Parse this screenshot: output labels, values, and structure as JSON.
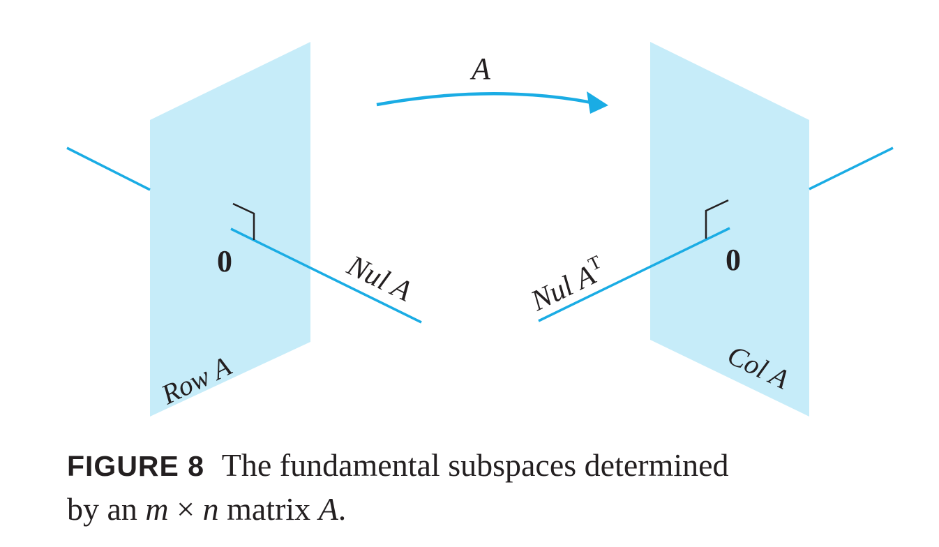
{
  "diagram": {
    "arrow_label": "A",
    "left_plane_label": "Row A",
    "right_plane_label": "Col A",
    "left_line_label": "Nul A",
    "right_line_label_base": "Nul A",
    "right_line_label_sup": "T",
    "zero_label": "0"
  },
  "caption": {
    "figure_number": "FIGURE 8",
    "text_1": "The fundamental subspaces determined",
    "text_2": "by an",
    "m": "m",
    "times": "×",
    "n": "n",
    "text_3": "matrix",
    "A": "A",
    "period": "."
  },
  "colors": {
    "plane_fill": "#c6ecf9",
    "line_cyan": "#1aace4",
    "ink": "#231f20"
  }
}
